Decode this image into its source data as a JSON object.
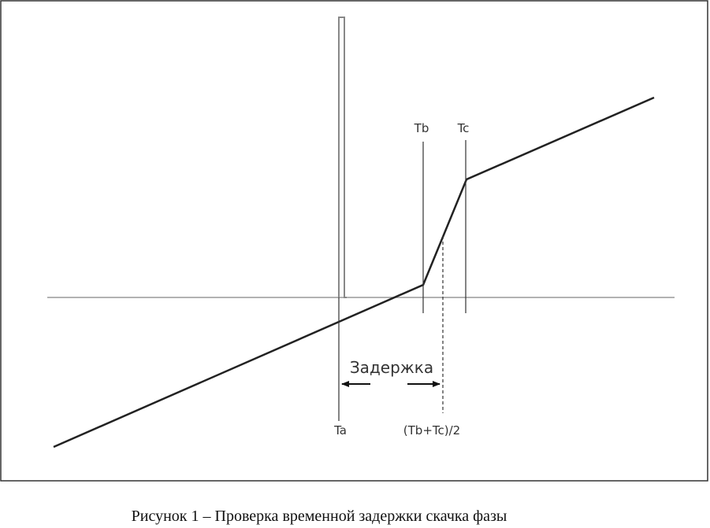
{
  "labels": {
    "tb": "Tb",
    "tc": "Tc",
    "delay": "Задержка",
    "ta": "Ta",
    "mid": "(Tb+Tc)/2"
  },
  "caption": "Рисунок 1 – Проверка временной задержки скачка фазы"
}
